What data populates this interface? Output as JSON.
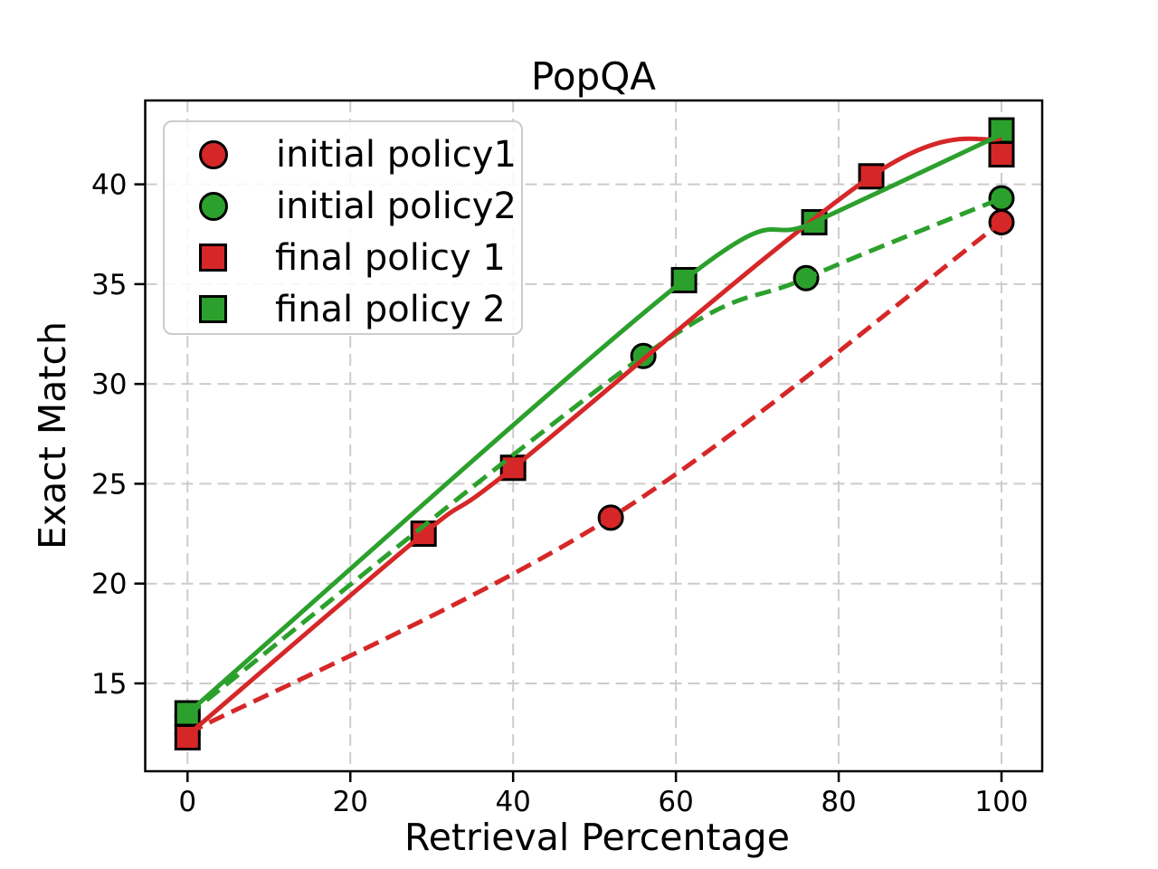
{
  "chart_data": {
    "type": "line",
    "title": "PopQA",
    "xlabel": "Retrieval Percentage",
    "ylabel": "Exact Match",
    "x_ticks": [
      0,
      20,
      40,
      60,
      80,
      100
    ],
    "y_ticks": [
      15,
      20,
      25,
      30,
      35,
      40
    ],
    "xlim": [
      -5.2,
      105
    ],
    "ylim": [
      10.6,
      44.2
    ],
    "grid": true,
    "grid_color": "#cccccc",
    "spine_color": "#000000",
    "background": "#ffffff",
    "legend_position": "upper left",
    "series": [
      {
        "name": "initial policy1",
        "color": "#d62728",
        "line_style": "dashed",
        "marker": "circle",
        "points": [
          [
            0,
            12.5
          ],
          [
            52,
            23.3
          ],
          [
            100,
            38.1
          ]
        ]
      },
      {
        "name": "initial policy2",
        "color": "#2ca02c",
        "line_style": "dashed",
        "marker": "circle",
        "points": [
          [
            0,
            13.4
          ],
          [
            56,
            31.4
          ],
          [
            76,
            35.3
          ],
          [
            100,
            39.3
          ]
        ]
      },
      {
        "name": "final policy 1",
        "color": "#d62728",
        "line_style": "solid",
        "marker": "square",
        "points": [
          [
            0,
            12.3
          ],
          [
            29,
            22.5
          ],
          [
            40,
            25.8
          ],
          [
            84,
            40.4
          ],
          [
            100,
            41.5
          ]
        ],
        "line_points": [
          [
            0,
            12.4
          ],
          [
            29,
            22.5
          ],
          [
            40,
            25.8
          ],
          [
            84,
            40.4
          ],
          [
            100,
            42.3
          ]
        ]
      },
      {
        "name": "final policy 2",
        "color": "#2ca02c",
        "line_style": "solid",
        "marker": "square",
        "points": [
          [
            0,
            13.5
          ],
          [
            61,
            35.2
          ],
          [
            77,
            38.1
          ],
          [
            100,
            42.7
          ]
        ],
        "line_points": [
          [
            0,
            13.5
          ],
          [
            61,
            35.2
          ],
          [
            77,
            38.1
          ],
          [
            100,
            42.5
          ]
        ]
      }
    ]
  }
}
